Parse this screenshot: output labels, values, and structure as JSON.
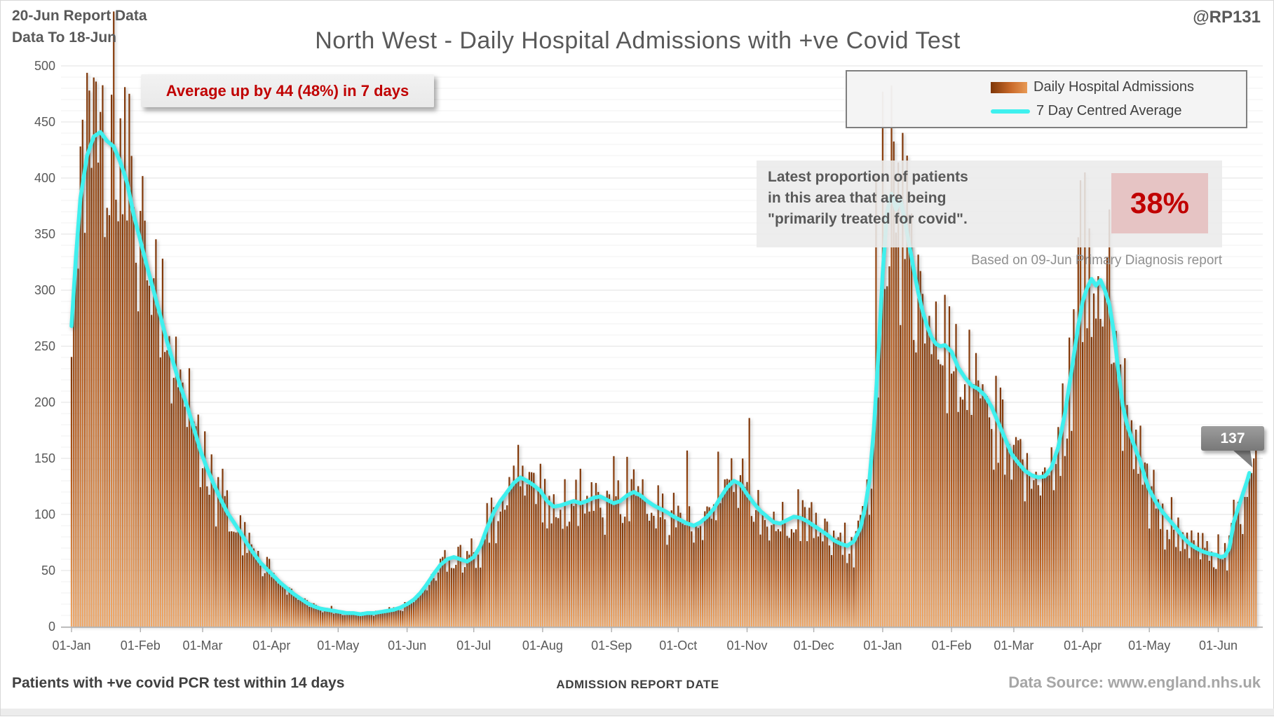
{
  "header": {
    "line1": "20-Jun Report Data",
    "line2": "Data To 18-Jun",
    "handle": "@RP131"
  },
  "title": "North West - Daily Hospital Admissions with +ve Covid Test",
  "annotation": {
    "text": "Average up by 44 (48%) in 7 days",
    "color": "#c00000"
  },
  "legend": {
    "items": [
      {
        "label": "Daily Hospital Admissions",
        "type": "bar"
      },
      {
        "label": "7 Day Centred Average",
        "type": "line"
      }
    ]
  },
  "info_box": {
    "line1": "Latest proportion of patients",
    "line2": "in this area that are being",
    "line3": "\"primarily treated for covid\".",
    "value": "38%",
    "value_color": "#c00000",
    "value_bg": "#e6c4c4"
  },
  "diagnosis_note": "Based on 09-Jun Primary Diagnosis report",
  "callout": {
    "value": "137"
  },
  "footer": {
    "left": "Patients with +ve covid PCR test within 14 days",
    "center": "ADMISSION  REPORT DATE",
    "right": "Data Source: www.england.nhs.uk"
  },
  "colors": {
    "accent_red": "#c00000",
    "bar_top": "#7e3608",
    "bar_mid": "#b55c1e",
    "bar_bottom": "#f0a766",
    "avg_line": "#3ff0ee",
    "text_gray": "#595959",
    "grid_major": "#e2e2e2",
    "grid_minor": "#f0f0f0",
    "axis": "#b0b0b0"
  },
  "chart_data": {
    "type": "bar",
    "title": "North West - Daily Hospital Admissions with +ve Covid Test",
    "xlabel": "ADMISSION REPORT DATE",
    "ylabel": "",
    "ylim": [
      0,
      500
    ],
    "y_tick_step": 50,
    "grid": true,
    "legend_position": "top-right",
    "start_date": "2021-01-01",
    "end_date": "2022-06-18",
    "x_ticks": [
      {
        "label": "01-Jan",
        "day": 0
      },
      {
        "label": "01-Feb",
        "day": 31
      },
      {
        "label": "01-Mar",
        "day": 59
      },
      {
        "label": "01-Apr",
        "day": 90
      },
      {
        "label": "01-May",
        "day": 120
      },
      {
        "label": "01-Jun",
        "day": 151
      },
      {
        "label": "01-Jul",
        "day": 181
      },
      {
        "label": "01-Aug",
        "day": 212
      },
      {
        "label": "01-Sep",
        "day": 243
      },
      {
        "label": "01-Oct",
        "day": 273
      },
      {
        "label": "01-Nov",
        "day": 304
      },
      {
        "label": "01-Dec",
        "day": 334
      },
      {
        "label": "01-Jan",
        "day": 365
      },
      {
        "label": "01-Feb",
        "day": 396
      },
      {
        "label": "01-Mar",
        "day": 424
      },
      {
        "label": "01-Apr",
        "day": 455
      },
      {
        "label": "01-May",
        "day": 485
      },
      {
        "label": "01-Jun",
        "day": 516
      }
    ],
    "series": [
      {
        "name": "Daily Hospital Admissions",
        "type": "bar",
        "derivation": "daily bars interpolated from avg_anchors with noise plus bar_overrides"
      },
      {
        "name": "7 Day Centred Average",
        "type": "line"
      }
    ],
    "avg_anchors": [
      [
        "2021-01-01",
        268
      ],
      [
        "2021-01-03",
        330
      ],
      [
        "2021-01-05",
        382
      ],
      [
        "2021-01-08",
        420
      ],
      [
        "2021-01-11",
        437
      ],
      [
        "2021-01-14",
        441
      ],
      [
        "2021-01-17",
        433
      ],
      [
        "2021-01-20",
        428
      ],
      [
        "2021-01-23",
        414
      ],
      [
        "2021-01-26",
        396
      ],
      [
        "2021-01-29",
        367
      ],
      [
        "2021-02-01",
        344
      ],
      [
        "2021-02-04",
        321
      ],
      [
        "2021-02-07",
        299
      ],
      [
        "2021-02-10",
        277
      ],
      [
        "2021-02-13",
        254
      ],
      [
        "2021-02-16",
        234
      ],
      [
        "2021-02-19",
        214
      ],
      [
        "2021-02-22",
        197
      ],
      [
        "2021-02-25",
        177
      ],
      [
        "2021-02-28",
        157
      ],
      [
        "2021-03-03",
        141
      ],
      [
        "2021-03-06",
        127
      ],
      [
        "2021-03-09",
        114
      ],
      [
        "2021-03-12",
        102
      ],
      [
        "2021-03-15",
        93
      ],
      [
        "2021-03-18",
        84
      ],
      [
        "2021-03-21",
        74
      ],
      [
        "2021-03-24",
        65
      ],
      [
        "2021-03-27",
        57
      ],
      [
        "2021-03-30",
        51
      ],
      [
        "2021-04-02",
        45
      ],
      [
        "2021-04-05",
        39
      ],
      [
        "2021-04-08",
        34
      ],
      [
        "2021-04-11",
        29
      ],
      [
        "2021-04-14",
        25
      ],
      [
        "2021-04-17",
        21
      ],
      [
        "2021-04-20",
        18
      ],
      [
        "2021-04-23",
        16
      ],
      [
        "2021-04-26",
        15
      ],
      [
        "2021-04-29",
        14
      ],
      [
        "2021-05-02",
        13
      ],
      [
        "2021-05-05",
        12
      ],
      [
        "2021-05-08",
        12
      ],
      [
        "2021-05-11",
        11
      ],
      [
        "2021-05-14",
        12
      ],
      [
        "2021-05-17",
        12
      ],
      [
        "2021-05-20",
        13
      ],
      [
        "2021-05-23",
        14
      ],
      [
        "2021-05-26",
        15
      ],
      [
        "2021-05-29",
        17
      ],
      [
        "2021-06-01",
        20
      ],
      [
        "2021-06-04",
        24
      ],
      [
        "2021-06-07",
        30
      ],
      [
        "2021-06-10",
        38
      ],
      [
        "2021-06-13",
        47
      ],
      [
        "2021-06-16",
        55
      ],
      [
        "2021-06-19",
        60
      ],
      [
        "2021-06-22",
        62
      ],
      [
        "2021-06-25",
        60
      ],
      [
        "2021-06-28",
        58
      ],
      [
        "2021-07-01",
        62
      ],
      [
        "2021-07-04",
        72
      ],
      [
        "2021-07-07",
        88
      ],
      [
        "2021-07-10",
        102
      ],
      [
        "2021-07-13",
        112
      ],
      [
        "2021-07-16",
        120
      ],
      [
        "2021-07-19",
        128
      ],
      [
        "2021-07-22",
        133
      ],
      [
        "2021-07-25",
        130
      ],
      [
        "2021-07-28",
        126
      ],
      [
        "2021-07-31",
        121
      ],
      [
        "2021-08-03",
        112
      ],
      [
        "2021-08-06",
        107
      ],
      [
        "2021-08-09",
        108
      ],
      [
        "2021-08-12",
        110
      ],
      [
        "2021-08-15",
        112
      ],
      [
        "2021-08-18",
        110
      ],
      [
        "2021-08-21",
        112
      ],
      [
        "2021-08-24",
        115
      ],
      [
        "2021-08-27",
        116
      ],
      [
        "2021-08-30",
        113
      ],
      [
        "2021-09-02",
        110
      ],
      [
        "2021-09-05",
        112
      ],
      [
        "2021-09-08",
        117
      ],
      [
        "2021-09-11",
        120
      ],
      [
        "2021-09-14",
        117
      ],
      [
        "2021-09-17",
        112
      ],
      [
        "2021-09-20",
        108
      ],
      [
        "2021-09-23",
        105
      ],
      [
        "2021-09-26",
        102
      ],
      [
        "2021-09-29",
        98
      ],
      [
        "2021-10-02",
        95
      ],
      [
        "2021-10-05",
        92
      ],
      [
        "2021-10-08",
        90
      ],
      [
        "2021-10-11",
        93
      ],
      [
        "2021-10-14",
        98
      ],
      [
        "2021-10-17",
        105
      ],
      [
        "2021-10-20",
        115
      ],
      [
        "2021-10-23",
        124
      ],
      [
        "2021-10-26",
        130
      ],
      [
        "2021-10-29",
        127
      ],
      [
        "2021-11-01",
        118
      ],
      [
        "2021-11-04",
        110
      ],
      [
        "2021-11-07",
        103
      ],
      [
        "2021-11-10",
        98
      ],
      [
        "2021-11-13",
        93
      ],
      [
        "2021-11-16",
        92
      ],
      [
        "2021-11-19",
        95
      ],
      [
        "2021-11-22",
        98
      ],
      [
        "2021-11-25",
        97
      ],
      [
        "2021-11-28",
        94
      ],
      [
        "2021-12-01",
        90
      ],
      [
        "2021-12-04",
        86
      ],
      [
        "2021-12-07",
        82
      ],
      [
        "2021-12-10",
        77
      ],
      [
        "2021-12-13",
        74
      ],
      [
        "2021-12-16",
        72
      ],
      [
        "2021-12-19",
        76
      ],
      [
        "2021-12-22",
        88
      ],
      [
        "2021-12-24",
        105
      ],
      [
        "2021-12-26",
        130
      ],
      [
        "2021-12-28",
        175
      ],
      [
        "2021-12-30",
        240
      ],
      [
        "2022-01-01",
        315
      ],
      [
        "2022-01-03",
        370
      ],
      [
        "2022-01-05",
        386
      ],
      [
        "2022-01-07",
        372
      ],
      [
        "2022-01-09",
        381
      ],
      [
        "2022-01-11",
        362
      ],
      [
        "2022-01-13",
        340
      ],
      [
        "2022-01-15",
        318
      ],
      [
        "2022-01-17",
        298
      ],
      [
        "2022-01-19",
        281
      ],
      [
        "2022-01-21",
        268
      ],
      [
        "2022-01-23",
        258
      ],
      [
        "2022-01-25",
        252
      ],
      [
        "2022-01-27",
        250
      ],
      [
        "2022-01-29",
        251
      ],
      [
        "2022-02-01",
        245
      ],
      [
        "2022-02-04",
        231
      ],
      [
        "2022-02-07",
        222
      ],
      [
        "2022-02-10",
        215
      ],
      [
        "2022-02-13",
        212
      ],
      [
        "2022-02-16",
        206
      ],
      [
        "2022-02-19",
        196
      ],
      [
        "2022-02-22",
        182
      ],
      [
        "2022-02-25",
        168
      ],
      [
        "2022-02-28",
        154
      ],
      [
        "2022-03-03",
        146
      ],
      [
        "2022-03-06",
        139
      ],
      [
        "2022-03-09",
        135
      ],
      [
        "2022-03-12",
        133
      ],
      [
        "2022-03-15",
        134
      ],
      [
        "2022-03-18",
        142
      ],
      [
        "2022-03-21",
        160
      ],
      [
        "2022-03-24",
        190
      ],
      [
        "2022-03-27",
        228
      ],
      [
        "2022-03-30",
        268
      ],
      [
        "2022-04-01",
        290
      ],
      [
        "2022-04-03",
        302
      ],
      [
        "2022-04-05",
        310
      ],
      [
        "2022-04-07",
        304
      ],
      [
        "2022-04-09",
        309
      ],
      [
        "2022-04-11",
        300
      ],
      [
        "2022-04-13",
        287
      ],
      [
        "2022-04-15",
        263
      ],
      [
        "2022-04-17",
        229
      ],
      [
        "2022-04-19",
        197
      ],
      [
        "2022-04-21",
        180
      ],
      [
        "2022-04-23",
        168
      ],
      [
        "2022-04-25",
        157
      ],
      [
        "2022-04-27",
        147
      ],
      [
        "2022-04-29",
        133
      ],
      [
        "2022-05-01",
        122
      ],
      [
        "2022-05-04",
        111
      ],
      [
        "2022-05-07",
        102
      ],
      [
        "2022-05-10",
        95
      ],
      [
        "2022-05-13",
        88
      ],
      [
        "2022-05-16",
        80
      ],
      [
        "2022-05-19",
        74
      ],
      [
        "2022-05-22",
        70
      ],
      [
        "2022-05-25",
        67
      ],
      [
        "2022-05-28",
        65
      ],
      [
        "2022-05-31",
        64
      ],
      [
        "2022-06-02",
        62
      ],
      [
        "2022-06-04",
        63
      ],
      [
        "2022-06-06",
        70
      ],
      [
        "2022-06-08",
        93
      ],
      [
        "2022-06-10",
        106
      ],
      [
        "2022-06-12",
        118
      ],
      [
        "2022-06-14",
        130
      ],
      [
        "2022-06-15",
        137
      ]
    ],
    "avg_line_end": {
      "date": "2022-06-15",
      "value": 137
    },
    "bar_overrides": {
      "2021-01-06": 452,
      "2021-01-09": 478,
      "2021-01-12": 486,
      "2021-02-03": 362,
      "2021-09-02": 152,
      "2021-10-05": 157,
      "2021-10-19": 156,
      "2021-11-02": 186,
      "2021-12-29": 403,
      "2022-01-01": 477,
      "2022-01-12": 420,
      "2022-03-31": 398,
      "2022-04-02": 405,
      "2022-04-13": 372,
      "2022-06-18": 158
    }
  }
}
